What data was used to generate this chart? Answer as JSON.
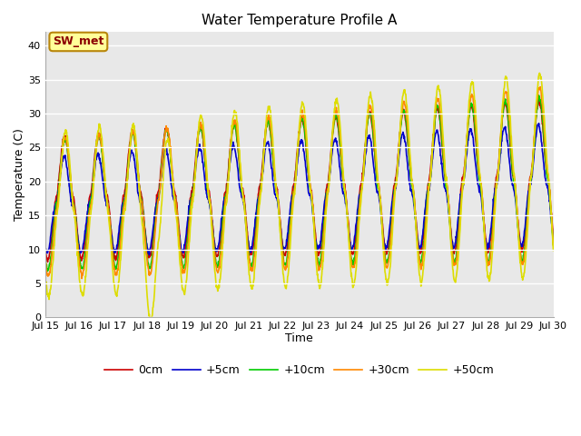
{
  "title": "Water Temperature Profile A",
  "xlabel": "Time",
  "ylabel": "Temperature (C)",
  "ylim": [
    0,
    42
  ],
  "yticks": [
    0,
    5,
    10,
    15,
    20,
    25,
    30,
    35,
    40
  ],
  "plot_bg_color": "#e8e8e8",
  "annotation_text": "SW_met",
  "annotation_color": "#8b0000",
  "annotation_bg": "#ffff99",
  "annotation_edge": "#b8860b",
  "legend": [
    "0cm",
    "+5cm",
    "+10cm",
    "+30cm",
    "+50cm"
  ],
  "line_colors": [
    "#cc0000",
    "#0000cc",
    "#00cc00",
    "#ff8800",
    "#dddd00"
  ],
  "xtick_labels": [
    "Jul 15",
    "Jul 16",
    "Jul 17",
    "Jul 18",
    "Jul 19",
    "Jul 20",
    "Jul 21",
    "Jul 22",
    "Jul 23",
    "Jul 24",
    "Jul 25",
    "Jul 26",
    "Jul 27",
    "Jul 28",
    "Jul 29",
    "Jul 30"
  ],
  "title_fontsize": 11,
  "axis_label_fontsize": 9,
  "tick_fontsize": 8,
  "legend_fontsize": 9
}
